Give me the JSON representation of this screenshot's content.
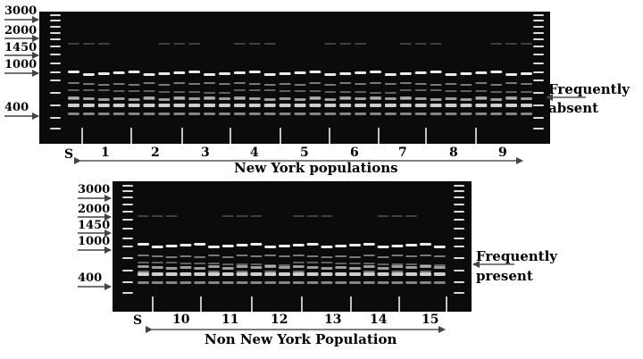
{
  "gels": [
    {
      "id": "ny",
      "marker_sizes": [
        "3000",
        "2000",
        "1450",
        "1000",
        "400"
      ],
      "sample_label": "S",
      "lane_groups": [
        "1",
        "2",
        "3",
        "4",
        "5",
        "6",
        "7",
        "8",
        "9"
      ],
      "population_label": "New York populations",
      "annotation": [
        "Frequently",
        "absent"
      ]
    },
    {
      "id": "non-ny",
      "marker_sizes": [
        "3000",
        "2000",
        "1450",
        "1000",
        "400"
      ],
      "sample_label": "S",
      "lane_groups": [
        "10",
        "11",
        "12",
        "13",
        "14",
        "15"
      ],
      "population_label": "Non New York Population",
      "annotation": [
        "Frequently",
        "present"
      ]
    }
  ],
  "colors": {
    "background": "#0b0b0b",
    "band": "#ffffff",
    "annotation": "#000000"
  }
}
